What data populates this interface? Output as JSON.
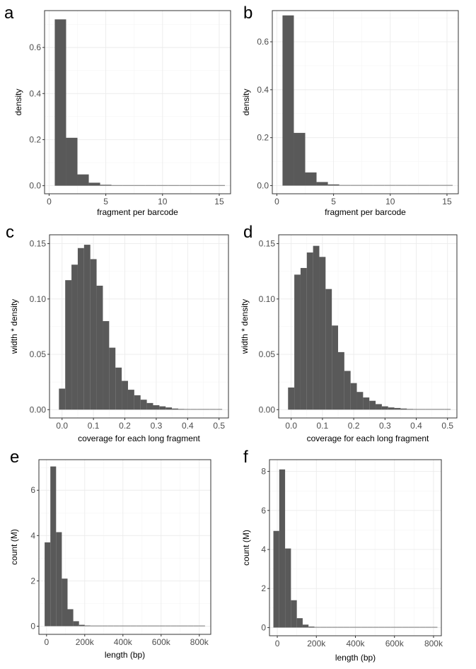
{
  "chart_data": [
    {
      "id": "a",
      "type": "bar",
      "panel_label": "a",
      "xlabel": "fragment per barcode",
      "ylabel": "density",
      "xlim": [
        -0.4,
        16.0
      ],
      "ylim": [
        -0.035,
        0.76
      ],
      "xticks": [
        0,
        5,
        10,
        15
      ],
      "xtick_labels": [
        "0",
        "5",
        "10",
        "15"
      ],
      "yticks": [
        0,
        0.2,
        0.4,
        0.6
      ],
      "ytick_labels": [
        "0.0",
        "0.2",
        "0.4",
        "0.6"
      ],
      "bin_start": 0.5,
      "bin_width": 1,
      "values": [
        0.722,
        0.208,
        0.049,
        0.013,
        0.004,
        0.0015,
        0.0008,
        0.0005,
        0.0003,
        0.0002,
        0.0001,
        0.0001,
        0.0001,
        0.0001,
        0.0001
      ]
    },
    {
      "id": "b",
      "type": "bar",
      "panel_label": "b",
      "xlabel": "fragment per barcode",
      "ylabel": "density",
      "xlim": [
        -0.4,
        16.0
      ],
      "ylim": [
        -0.034,
        0.73
      ],
      "xticks": [
        0,
        5,
        10,
        15
      ],
      "xtick_labels": [
        "0",
        "5",
        "10",
        "15"
      ],
      "yticks": [
        0,
        0.2,
        0.4,
        0.6
      ],
      "ytick_labels": [
        "0.0",
        "0.2",
        "0.4",
        "0.6"
      ],
      "bin_start": 0.5,
      "bin_width": 1,
      "values": [
        0.71,
        0.22,
        0.055,
        0.015,
        0.005,
        0.002,
        0.001,
        0.0005,
        0.0003,
        0.0002,
        0.0001,
        0.0001,
        0.0001,
        0.0001,
        0.0001
      ]
    },
    {
      "id": "c",
      "type": "bar",
      "panel_label": "c",
      "xlabel": "coverage for each long fragment",
      "ylabel": "width * density",
      "xlim": [
        -0.04,
        0.53
      ],
      "ylim": [
        -0.0075,
        0.158
      ],
      "xticks": [
        0,
        0.1,
        0.2,
        0.3,
        0.4,
        0.5
      ],
      "xtick_labels": [
        "0.0",
        "0.1",
        "0.2",
        "0.3",
        "0.4",
        "0.5"
      ],
      "yticks": [
        0,
        0.05,
        0.1,
        0.15
      ],
      "ytick_labels": [
        "0.00",
        "0.05",
        "0.10",
        "0.15"
      ],
      "bin_start": -0.01,
      "bin_width": 0.02,
      "values": [
        0.019,
        0.117,
        0.131,
        0.146,
        0.149,
        0.136,
        0.112,
        0.08,
        0.056,
        0.038,
        0.026,
        0.018,
        0.013,
        0.009,
        0.006,
        0.004,
        0.003,
        0.002,
        0.001,
        0.0006,
        0.0005,
        0.0004,
        0.0003,
        0.0002,
        0.0002,
        0.0001
      ]
    },
    {
      "id": "d",
      "type": "bar",
      "panel_label": "d",
      "xlabel": "coverage for each long fragment",
      "ylabel": "width * density",
      "xlim": [
        -0.04,
        0.53
      ],
      "ylim": [
        -0.0075,
        0.158
      ],
      "xticks": [
        0,
        0.1,
        0.2,
        0.3,
        0.4,
        0.5
      ],
      "xtick_labels": [
        "0.0",
        "0.1",
        "0.2",
        "0.3",
        "0.4",
        "0.5"
      ],
      "yticks": [
        0,
        0.05,
        0.1,
        0.15
      ],
      "ytick_labels": [
        "0.00",
        "0.05",
        "0.10",
        "0.15"
      ],
      "bin_start": -0.01,
      "bin_width": 0.02,
      "values": [
        0.02,
        0.122,
        0.128,
        0.142,
        0.148,
        0.138,
        0.109,
        0.076,
        0.052,
        0.035,
        0.024,
        0.016,
        0.011,
        0.008,
        0.005,
        0.003,
        0.002,
        0.0015,
        0.001,
        0.0006,
        0.0005,
        0.0004,
        0.0003,
        0.0002,
        0.0002,
        0.0001
      ]
    },
    {
      "id": "e",
      "type": "bar",
      "panel_label": "e",
      "xlabel": "length (bp)",
      "ylabel": "count (M)",
      "xlim": [
        -40000,
        860000
      ],
      "ylim": [
        -0.36,
        7.35
      ],
      "xticks": [
        0,
        200000,
        400000,
        600000,
        800000
      ],
      "xtick_labels": [
        "0",
        "200k",
        "400k",
        "600k",
        "800k"
      ],
      "yticks": [
        0,
        2,
        4,
        6
      ],
      "ytick_labels": [
        "0",
        "2",
        "4",
        "6"
      ],
      "bin_start": -10000,
      "bin_width": 30000,
      "values": [
        3.7,
        7.05,
        4.15,
        2.1,
        0.75,
        0.22,
        0.06,
        0.03,
        0.015,
        0.01,
        0.006,
        0.004,
        0.003,
        0.002,
        0.002,
        0.001,
        0.001,
        0.001,
        0.001,
        0.001,
        0.001,
        0.001,
        0.001,
        0.001,
        0.001,
        0.001,
        0.001,
        0.001
      ]
    },
    {
      "id": "f",
      "type": "bar",
      "panel_label": "f",
      "xlabel": "length (bp)",
      "ylabel": "count (M)",
      "xlim": [
        -40000,
        840000
      ],
      "ylim": [
        -0.42,
        8.6
      ],
      "xticks": [
        0,
        200000,
        400000,
        600000,
        800000
      ],
      "xtick_labels": [
        "0",
        "200k",
        "400k",
        "600k",
        "800k"
      ],
      "yticks": [
        0,
        2,
        4,
        6,
        8
      ],
      "ytick_labels": [
        "0",
        "2",
        "4",
        "6",
        "8"
      ],
      "bin_start": -20000,
      "bin_width": 30000,
      "values": [
        4.95,
        8.1,
        4.05,
        1.4,
        0.48,
        0.15,
        0.05,
        0.02,
        0.01,
        0.006,
        0.004,
        0.003,
        0.002,
        0.002,
        0.001,
        0.001,
        0.001,
        0.001,
        0.001,
        0.001,
        0.001,
        0.001,
        0.001,
        0.001,
        0.001,
        0.001,
        0.001,
        0.001
      ]
    }
  ]
}
